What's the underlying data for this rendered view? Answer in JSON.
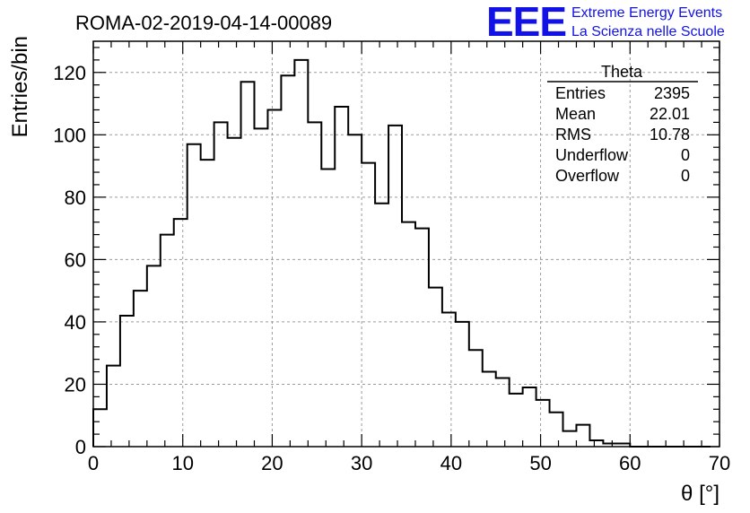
{
  "title": "ROMA-02-2019-04-14-00089",
  "logo": {
    "mark": "EEE",
    "line1": "Extreme Energy Events",
    "line2": "La Scienza nelle Scuole",
    "color": "#1212e8"
  },
  "stats_box": {
    "name": "Theta",
    "rows": [
      {
        "label": "Entries",
        "value": "2395"
      },
      {
        "label": "Mean",
        "value": "22.01"
      },
      {
        "label": "RMS",
        "value": "10.78"
      },
      {
        "label": "Underflow",
        "value": "0"
      },
      {
        "label": "Overflow",
        "value": "0"
      }
    ]
  },
  "chart_data": {
    "type": "histogram",
    "xlabel": "θ [°]",
    "ylabel": "Entries/bin",
    "xlim": [
      0,
      70
    ],
    "ylim": [
      0,
      130
    ],
    "bin_width": 1.5,
    "bin_start": 0,
    "x_ticks": [
      0,
      10,
      20,
      30,
      40,
      50,
      60,
      70
    ],
    "y_ticks": [
      0,
      20,
      40,
      60,
      80,
      100,
      120
    ],
    "grid": true,
    "values": [
      12,
      26,
      42,
      50,
      58,
      68,
      73,
      97,
      92,
      104,
      99,
      117,
      102,
      108,
      119,
      124,
      104,
      89,
      109,
      100,
      91,
      78,
      103,
      72,
      70,
      51,
      43,
      40,
      31,
      24,
      22,
      17,
      19,
      15,
      11,
      5,
      7,
      2,
      1,
      1,
      0,
      0,
      0,
      0,
      0,
      0
    ]
  }
}
